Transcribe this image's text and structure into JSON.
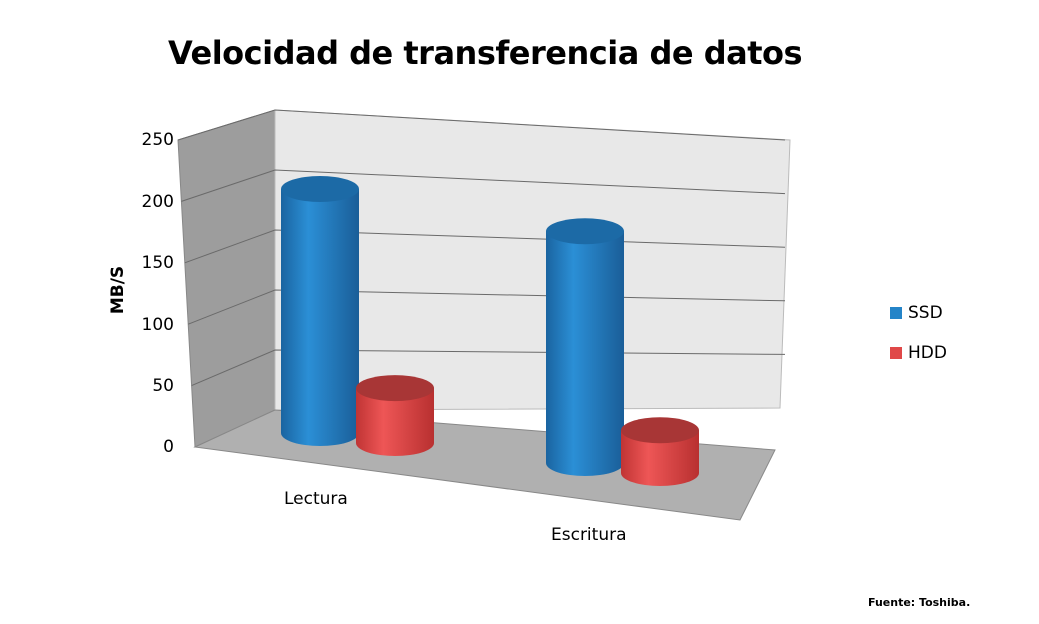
{
  "chart_data": {
    "type": "bar",
    "style": "3d-cylinder",
    "title": "Velocidad de transferencia de datos",
    "xlabel": "",
    "ylabel": "MB/S",
    "ylim": [
      0,
      250
    ],
    "yticks": [
      "0",
      "50",
      "100",
      "150",
      "200",
      "250"
    ],
    "categories": [
      "Lectura",
      "Escritura"
    ],
    "series": [
      {
        "name": "SSD",
        "values": [
          200,
          190
        ],
        "color": "#2484c8"
      },
      {
        "name": "HDD",
        "values": [
          45,
          35
        ],
        "color": "#e04848"
      }
    ],
    "grid": true,
    "legend": "right",
    "source": "Fuente: Toshiba."
  }
}
